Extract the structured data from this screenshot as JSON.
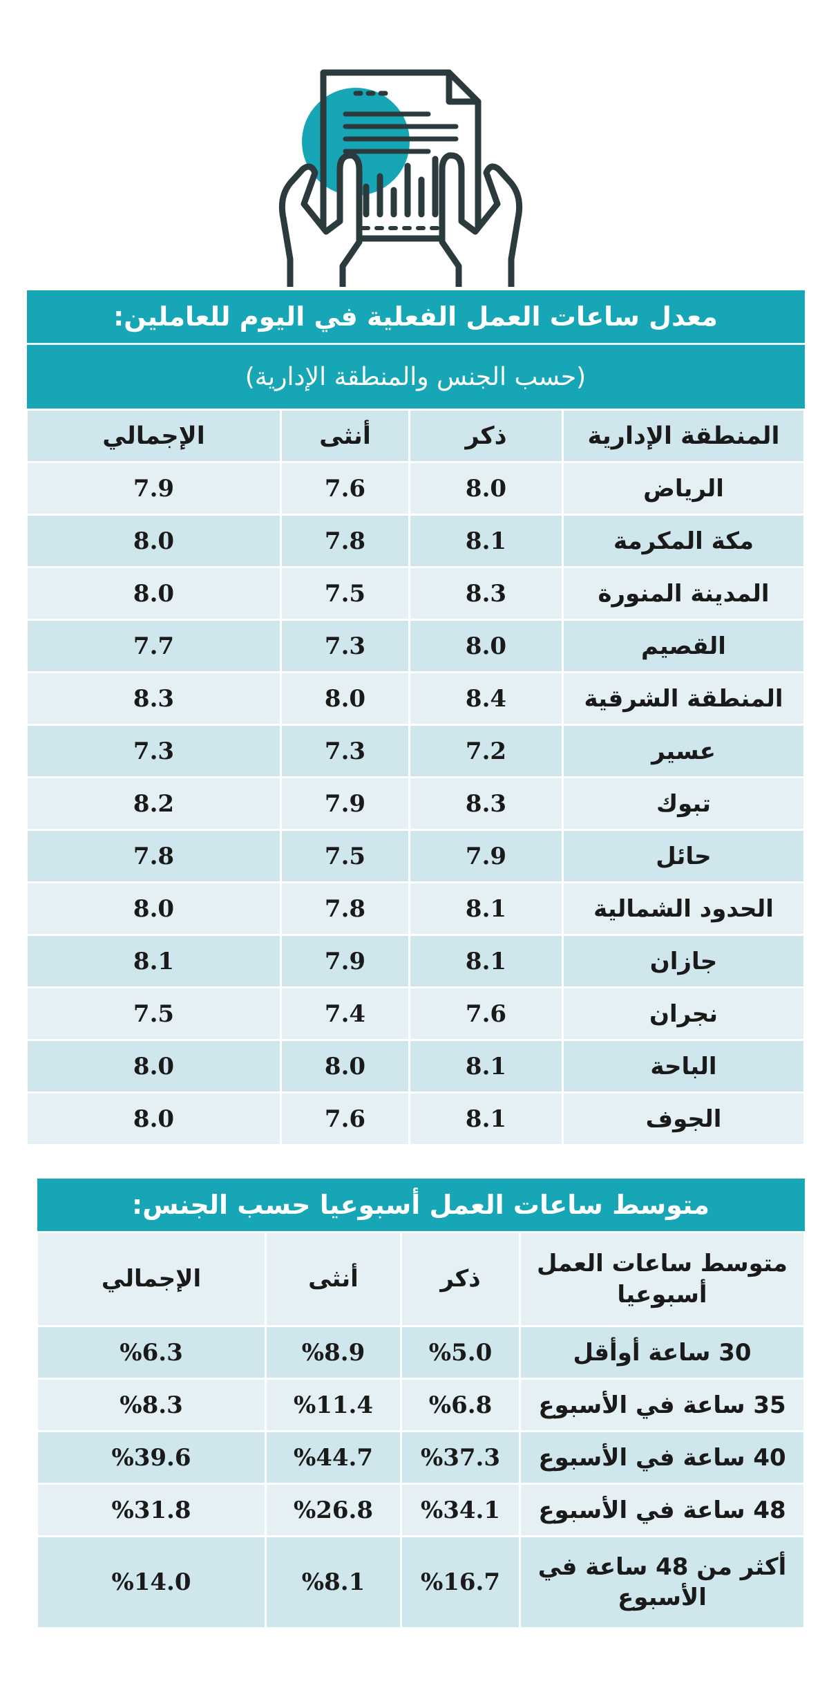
{
  "colors": {
    "teal": "#16a6b6",
    "row_light": "#e4f0f4",
    "row_dark": "#cfe6ed",
    "icon_stroke": "#2b3a3d"
  },
  "hero": {
    "icon": "document-bar-chart-held-by-hands-icon"
  },
  "daily_table": {
    "title": "معدل ساعات العمل الفعلية في اليوم للعاملين:",
    "subtitle": "(حسب الجنس والمنطقة الإدارية)",
    "headers": [
      "المنطقة الإدارية",
      "ذكر",
      "أنثى",
      "الإجمالي"
    ],
    "rows": [
      {
        "region": "الرياض",
        "male": "8.0",
        "female": "7.6",
        "total": "7.9"
      },
      {
        "region": "مكة المكرمة",
        "male": "8.1",
        "female": "7.8",
        "total": "8.0"
      },
      {
        "region": "المدينة المنورة",
        "male": "8.3",
        "female": "7.5",
        "total": "8.0"
      },
      {
        "region": "القصيم",
        "male": "8.0",
        "female": "7.3",
        "total": "7.7"
      },
      {
        "region": "المنطقة الشرقية",
        "male": "8.4",
        "female": "8.0",
        "total": "8.3"
      },
      {
        "region": "عسير",
        "male": "7.2",
        "female": "7.3",
        "total": "7.3"
      },
      {
        "region": "تبوك",
        "male": "8.3",
        "female": "7.9",
        "total": "8.2"
      },
      {
        "region": "حائل",
        "male": "7.9",
        "female": "7.5",
        "total": "7.8"
      },
      {
        "region": "الحدود الشمالية",
        "male": "8.1",
        "female": "7.8",
        "total": "8.0"
      },
      {
        "region": "جازان",
        "male": "8.1",
        "female": "7.9",
        "total": "8.1"
      },
      {
        "region": "نجران",
        "male": "7.6",
        "female": "7.4",
        "total": "7.5"
      },
      {
        "region": "الباحة",
        "male": "8.1",
        "female": "8.0",
        "total": "8.0"
      },
      {
        "region": "الجوف",
        "male": "8.1",
        "female": "7.6",
        "total": "8.0"
      }
    ]
  },
  "weekly_table": {
    "title": "متوسط ساعات العمل أسبوعيا حسب الجنس:",
    "headers": [
      "متوسط ساعات العمل أسبوعيا",
      "ذكر",
      "أنثى",
      "الإجمالي"
    ],
    "rows": [
      {
        "label": "30 ساعة أوأقل",
        "male": "%5.0",
        "female": "%8.9",
        "total": "%6.3"
      },
      {
        "label": "35 ساعة في الأسبوع",
        "male": "%6.8",
        "female": "%11.4",
        "total": "%8.3"
      },
      {
        "label": "40 ساعة في الأسبوع",
        "male": "%37.3",
        "female": "%44.7",
        "total": "%39.6"
      },
      {
        "label": "48 ساعة في الأسبوع",
        "male": "%34.1",
        "female": "%26.8",
        "total": "%31.8"
      },
      {
        "label": "أكثر من 48 ساعة في الأسبوع",
        "male": "%16.7",
        "female": "%8.1",
        "total": "%14.0"
      }
    ]
  }
}
